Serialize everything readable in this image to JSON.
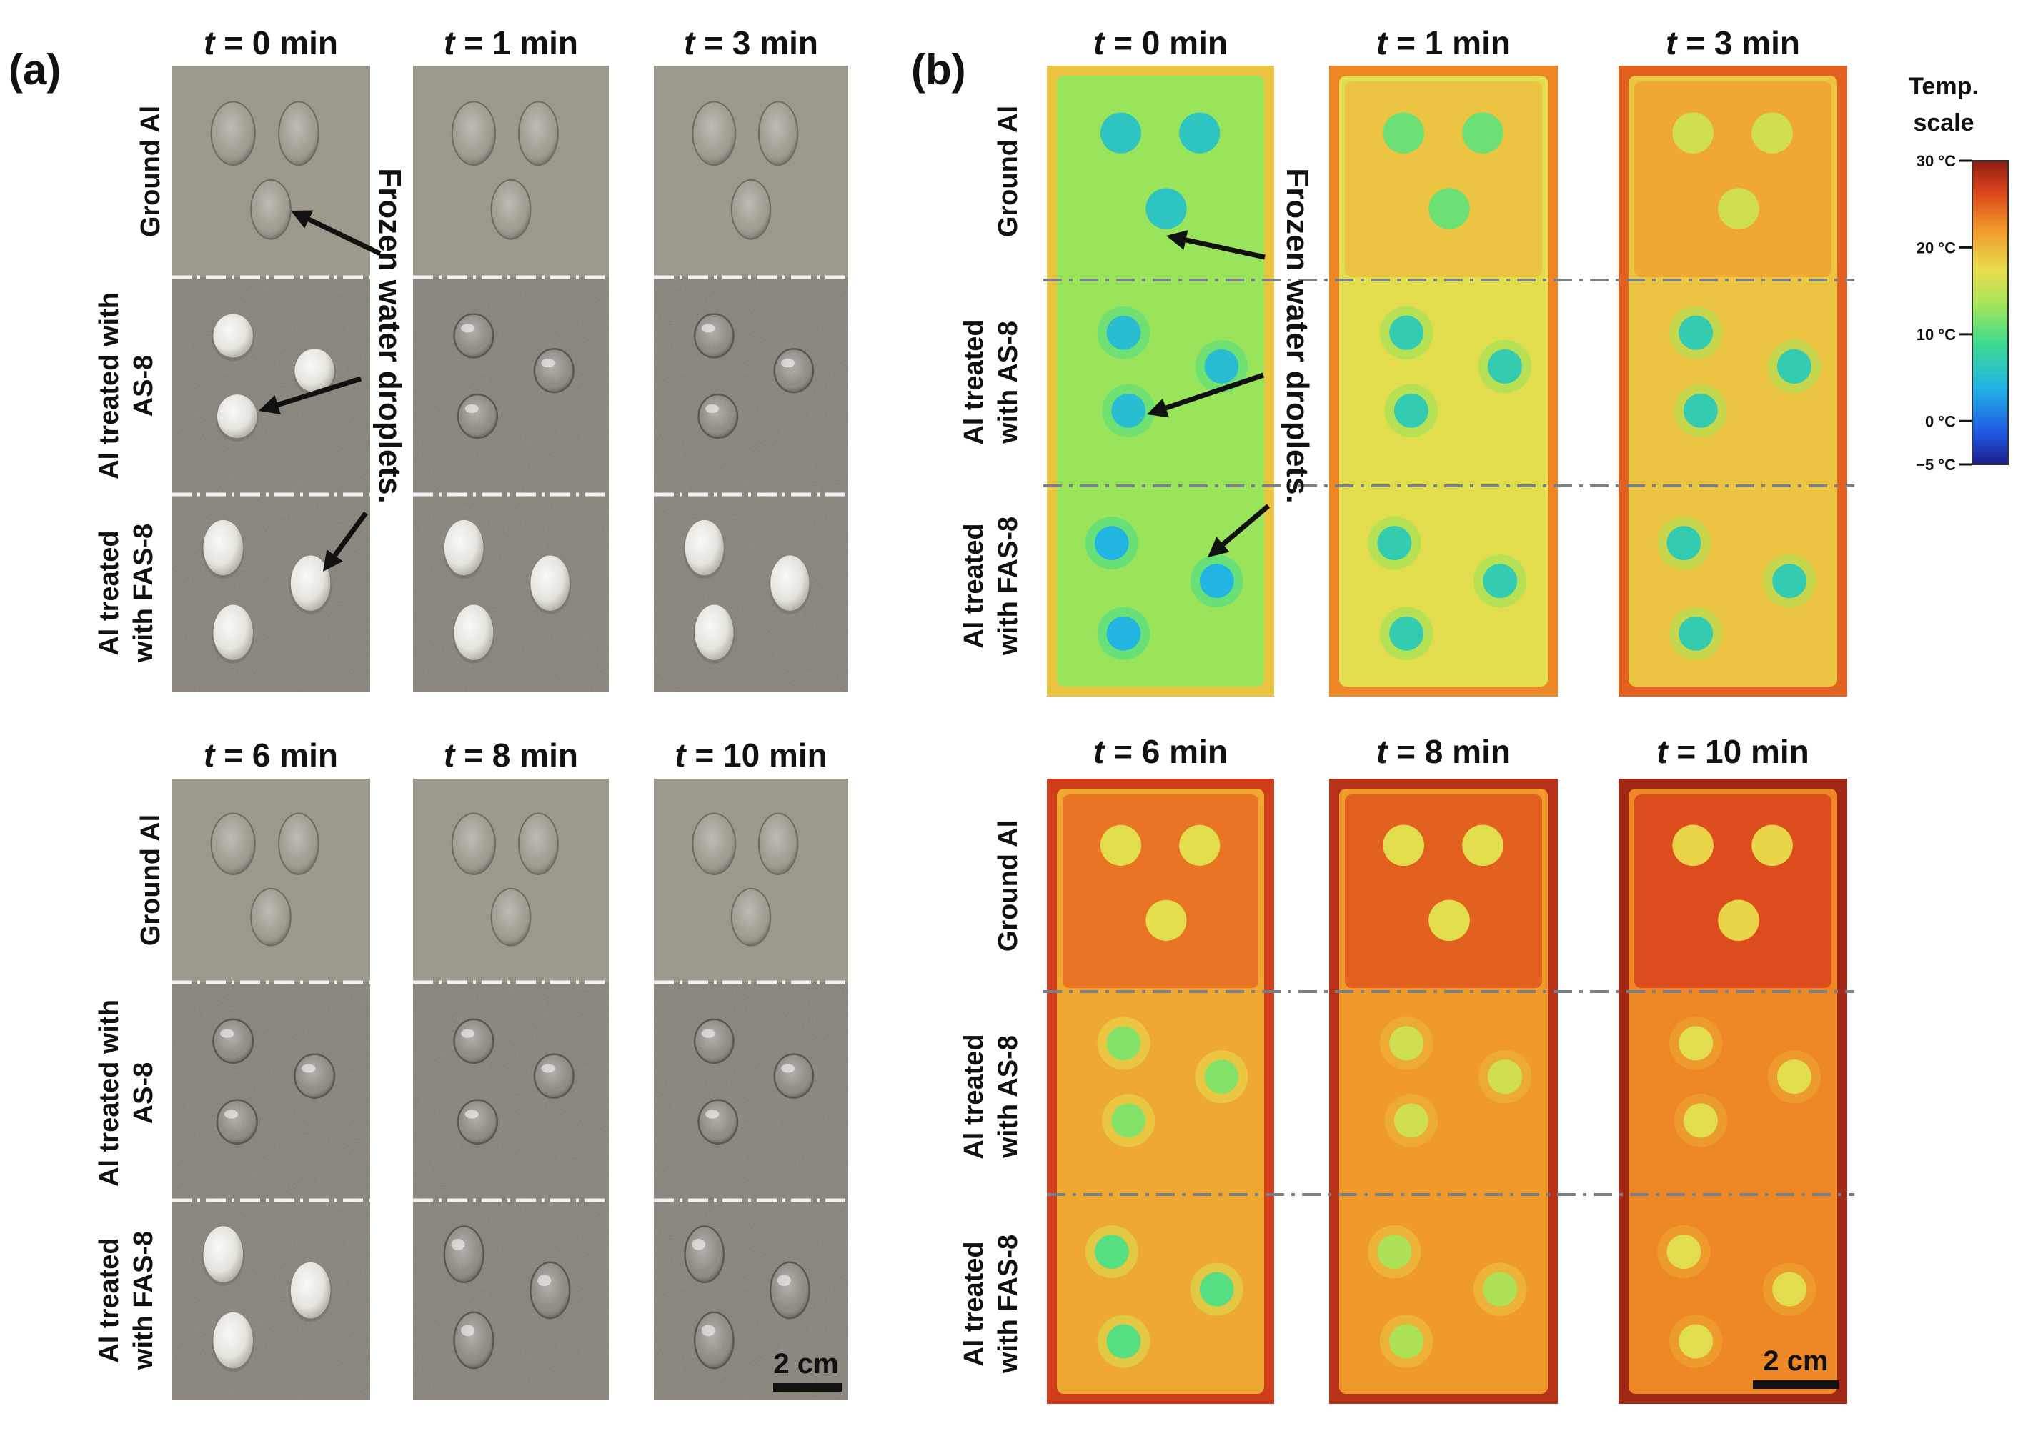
{
  "panels": {
    "a": {
      "label": "(a)"
    },
    "b": {
      "label": "(b)"
    }
  },
  "time_labels": {
    "top": [
      "t = 0 min",
      "t = 1 min",
      "t = 3 min"
    ],
    "bottom": [
      "t = 6 min",
      "t = 8 min",
      "t = 10 min"
    ]
  },
  "row_labels_a": {
    "ground": [
      "Ground Al"
    ],
    "as8": [
      "Al treated with",
      "AS-8"
    ],
    "fas8": [
      "Al treated",
      "with FAS-8"
    ]
  },
  "row_labels_b": {
    "ground": [
      "Ground Al"
    ],
    "as8": [
      "Al treated",
      "with AS-8"
    ],
    "fas8": [
      "Al treated",
      "with FAS-8"
    ]
  },
  "annotation": "Frozen water droplets.",
  "scale_bar_label": "2 cm",
  "colorbar": {
    "title_line1": "Temp.",
    "title_line2": "scale",
    "ticks": [
      "30 °C",
      "20 °C",
      "10 °C",
      "0 °C",
      "−5 °C"
    ],
    "tick_values": [
      30,
      20,
      10,
      0,
      -5
    ],
    "range": [
      -5,
      30
    ]
  },
  "colors": {
    "photo_ground": "#9d988c",
    "photo_treated": "#938f86",
    "thermal_cold": "#1e5fd9",
    "thermal_mid": "#7be07a",
    "thermal_warm": "#f6c85a",
    "thermal_hot": "#f06e23"
  },
  "thermal_state": {
    "background_temps_top": [
      13,
      17,
      19
    ],
    "background_temps_bottom": [
      21,
      22,
      23
    ],
    "ground_region_temps_top": [
      13,
      19,
      21
    ],
    "ground_region_temps_bottom": [
      24,
      25,
      26
    ],
    "droplet_temps_top": [
      {
        "ground": 6,
        "as8": 5,
        "fas8": 4
      },
      {
        "ground": 11,
        "as8": 7,
        "fas8": 7
      },
      {
        "ground": 16,
        "as8": 7,
        "fas8": 7
      }
    ],
    "droplet_temps_bottom": [
      {
        "ground": 17,
        "as8": 12,
        "fas8": 10
      },
      {
        "ground": 17,
        "as8": 16,
        "fas8": 14
      },
      {
        "ground": 18,
        "as8": 17,
        "fas8": 17
      }
    ]
  }
}
